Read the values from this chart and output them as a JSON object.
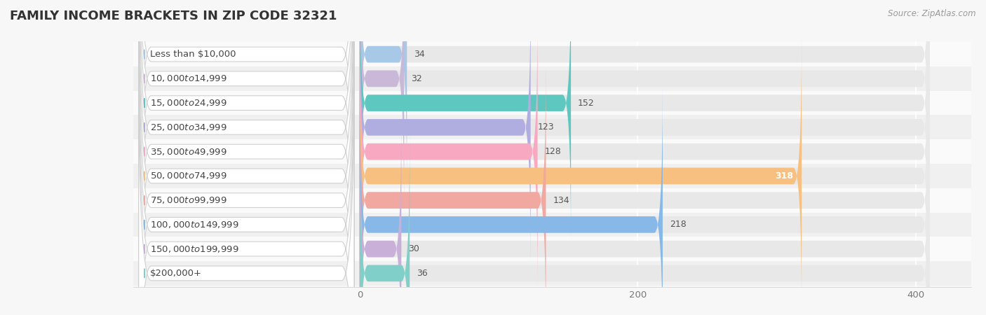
{
  "title": "FAMILY INCOME BRACKETS IN ZIP CODE 32321",
  "source": "Source: ZipAtlas.com",
  "categories": [
    "Less than $10,000",
    "$10,000 to $14,999",
    "$15,000 to $24,999",
    "$25,000 to $34,999",
    "$35,000 to $49,999",
    "$50,000 to $74,999",
    "$75,000 to $99,999",
    "$100,000 to $149,999",
    "$150,000 to $199,999",
    "$200,000+"
  ],
  "values": [
    34,
    32,
    152,
    123,
    128,
    318,
    134,
    218,
    30,
    36
  ],
  "bar_colors": [
    "#a8c8e8",
    "#c9b8d8",
    "#5ec8c0",
    "#b0aee0",
    "#f8a8c0",
    "#f8c080",
    "#f0a8a0",
    "#88b8e8",
    "#c8b0d8",
    "#80cfc8"
  ],
  "xticks": [
    0,
    200,
    400
  ],
  "x_max": 420,
  "bg_color": "#f7f7f7",
  "bar_bg_color": "#e8e8e8",
  "row_bg_even": "#f0f0f0",
  "row_bg_odd": "#fafafa",
  "title_fontsize": 13,
  "source_fontsize": 8.5,
  "label_fontsize": 9.5,
  "value_fontsize": 9
}
